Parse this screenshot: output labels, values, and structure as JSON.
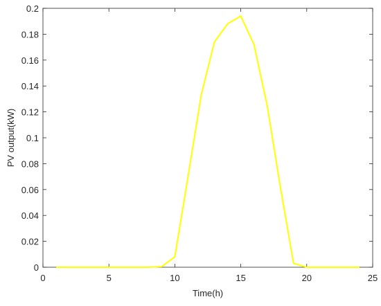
{
  "chart_data": {
    "type": "line",
    "xlabel": "Time(h)",
    "ylabel": "PV output(kW)",
    "x": [
      1,
      2,
      3,
      4,
      5,
      6,
      7,
      8,
      9,
      10,
      11,
      12,
      13,
      14,
      15,
      16,
      17,
      18,
      19,
      20,
      21,
      22,
      23,
      24
    ],
    "series": [
      {
        "color": "#ffff00",
        "values": [
          0,
          0,
          0,
          0,
          0,
          0,
          0,
          0,
          0.0005,
          0.008,
          0.07,
          0.133,
          0.174,
          0.188,
          0.194,
          0.172,
          0.125,
          0.062,
          0.003,
          0,
          0,
          0,
          0,
          0
        ]
      }
    ],
    "xlim": [
      0,
      25
    ],
    "xticks": [
      0,
      5,
      10,
      15,
      20,
      25
    ],
    "ylim": [
      0,
      0.2
    ],
    "yticks": [
      0,
      0.02,
      0.04,
      0.06,
      0.08,
      0.1,
      0.12,
      0.14,
      0.16,
      0.18,
      0.2
    ]
  }
}
